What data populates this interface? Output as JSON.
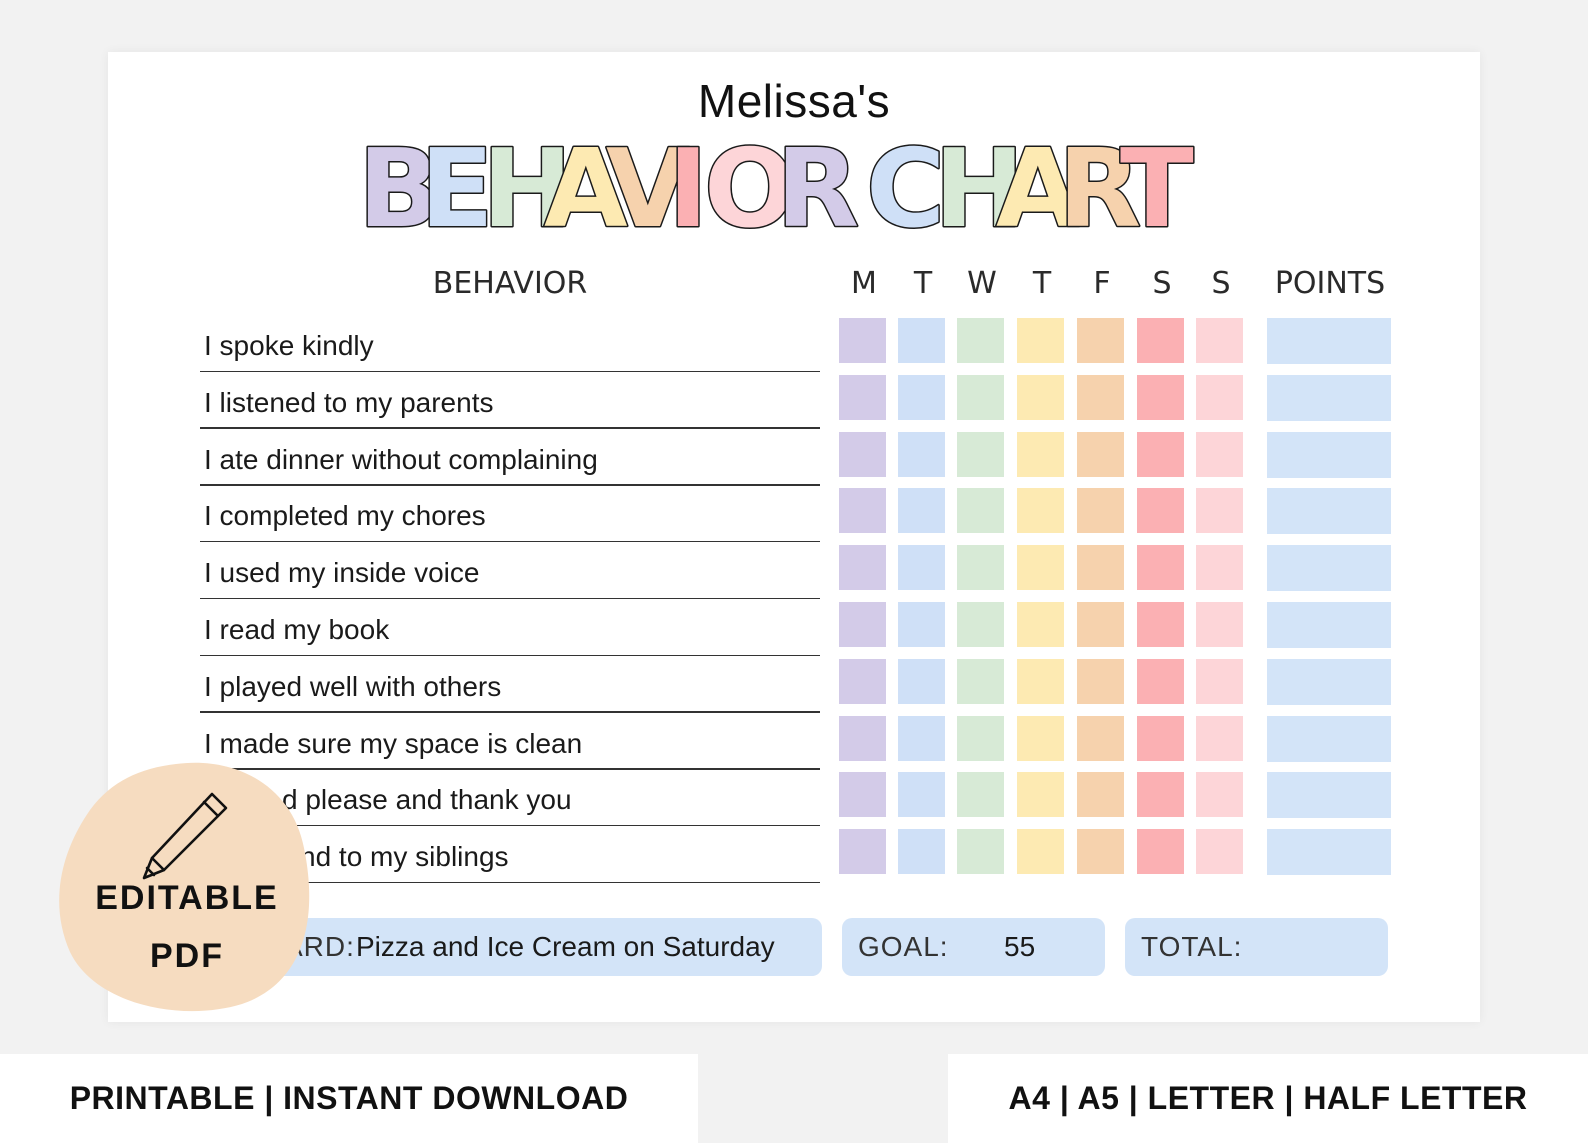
{
  "chart": {
    "child_name": "Melissa's",
    "title_word1": "BEHAVIOR",
    "title_word2": "CHART",
    "headers": {
      "behavior": "BEHAVIOR",
      "points": "POINTS",
      "days": [
        "M",
        "T",
        "W",
        "T",
        "F",
        "S",
        "S"
      ]
    },
    "day_colors": [
      "#d3cbe8",
      "#cfe0f7",
      "#d7ead6",
      "#fdeab2",
      "#f6d2ad",
      "#fbb0b3",
      "#fdd5d8"
    ],
    "points_color": "#d3e4f8",
    "behaviors": [
      "I spoke kindly",
      "I listened to my parents",
      "I ate dinner without complaining",
      "I completed my chores",
      "I used my inside voice",
      "I read my book",
      "I played well with others",
      "I made sure my space is clean",
      "   ...d please and thank you",
      "   ...nd to my siblings"
    ],
    "behaviors_visible": [
      "I spoke kindly",
      "I listened to my parents",
      "I ate dinner without complaining",
      "I completed my chores",
      "I used my inside voice",
      "I read my book",
      "I played well with others",
      "I made sure my space is clean",
      "d please and thank you",
      "nd to my siblings"
    ],
    "footer": {
      "reward_label": "ARD:",
      "reward_value": "Pizza and Ice Cream on Saturday",
      "goal_label": "GOAL:",
      "goal_value": "55",
      "total_label": "TOTAL:",
      "total_value": ""
    }
  },
  "badge": {
    "line1": "EDITABLE",
    "line2": "PDF",
    "color": "#f6dcc0",
    "icon": "pencil-icon"
  },
  "banners": {
    "left": "PRINTABLE  |  INSTANT DOWNLOAD",
    "right": "A4 | A5 | LETTER | HALF LETTER"
  }
}
